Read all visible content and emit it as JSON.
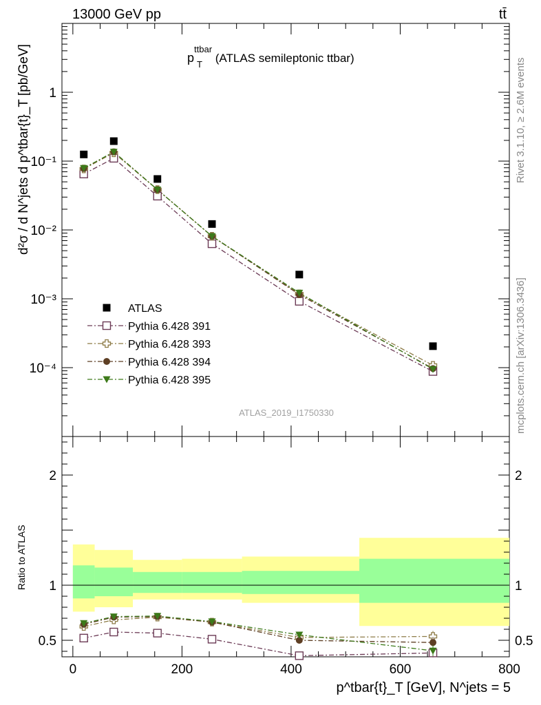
{
  "header": {
    "energy_label": "13000 GeV pp",
    "process_label": "tt̄",
    "plot_title": "p",
    "plot_title_sup": "ttbar",
    "plot_title_sub": "T",
    "plot_title_rest": " (ATLAS semileptonic ttbar)",
    "side_label_rivet": "Rivet 3.1.10, ≥ 2.6M events",
    "side_label_mcplots": "mcplots.cern.ch [arXiv:1306.3436]",
    "analysis_id": "ATLAS_2019_I1750330"
  },
  "axes": {
    "main_ylabel": "d²σ / d N^jets d p^tbar{t}_T [pb/GeV]",
    "ratio_ylabel": "Ratio to ATLAS",
    "xlabel": "p^tbar{t}_T [GeV], N^jets = 5"
  },
  "colors": {
    "atlas": "#000000",
    "p391": "#6b3a55",
    "p393": "#8c7a45",
    "p394": "#5e3f24",
    "p395": "#3d7a1a",
    "band_inner": "#99ff99",
    "band_outer": "#ffff99"
  },
  "chart_data": [
    {
      "type": "scatter",
      "panel": "main",
      "y_scale": "log",
      "xlim": [
        -20,
        800
      ],
      "ylim": [
        1e-05,
        10
      ],
      "x_ticks": [
        0,
        200,
        400,
        600,
        800
      ],
      "y_tick_labels": [
        "1",
        "10⁻¹",
        "10⁻²",
        "10⁻³",
        "10⁻⁴"
      ],
      "y_tick_values": [
        1,
        0.1,
        0.01,
        0.001,
        0.0001
      ],
      "legend_placement": "lower-left",
      "series": [
        {
          "name": "ATLAS",
          "marker": "square-filled",
          "line": "none",
          "x": [
            20,
            75,
            155,
            255,
            415,
            660
          ],
          "y": [
            0.125,
            0.195,
            0.055,
            0.0122,
            0.00225,
            0.000205
          ]
        },
        {
          "name": "Pythia 6.428 391",
          "marker": "square-open",
          "line": "dash-dot",
          "x": [
            20,
            75,
            155,
            255,
            415,
            660
          ],
          "y": [
            0.065,
            0.11,
            0.031,
            0.0063,
            0.00092,
            8.8e-05
          ]
        },
        {
          "name": "Pythia 6.428 393",
          "marker": "cross-open",
          "line": "dash-dot",
          "x": [
            20,
            75,
            155,
            255,
            415,
            660
          ],
          "y": [
            0.077,
            0.132,
            0.0385,
            0.0081,
            0.00118,
            0.000108
          ]
        },
        {
          "name": "Pythia 6.428 394",
          "marker": "circle-filled",
          "line": "dash-dot",
          "x": [
            20,
            75,
            155,
            255,
            415,
            660
          ],
          "y": [
            0.078,
            0.136,
            0.0385,
            0.0081,
            0.00115,
            9.7e-05
          ]
        },
        {
          "name": "Pythia 6.428 395",
          "marker": "triangle-down-filled",
          "line": "dash-dot",
          "x": [
            20,
            75,
            155,
            255,
            415,
            660
          ],
          "y": [
            0.079,
            0.136,
            0.0385,
            0.0081,
            0.00122,
            9.5e-05
          ]
        }
      ]
    },
    {
      "type": "scatter",
      "panel": "ratio",
      "xlim": [
        -20,
        800
      ],
      "ylim": [
        0.35,
        2.35
      ],
      "x_ticks": [
        0,
        200,
        400,
        600,
        800
      ],
      "y_ticks": [
        0.5,
        1,
        2
      ],
      "reference_line": 1,
      "bands": [
        {
          "x_lo": 0,
          "x_hi": 40,
          "inner": [
            0.88,
            1.18
          ],
          "outer": [
            0.76,
            1.37
          ]
        },
        {
          "x_lo": 40,
          "x_hi": 110,
          "inner": [
            0.9,
            1.16
          ],
          "outer": [
            0.8,
            1.32
          ]
        },
        {
          "x_lo": 110,
          "x_hi": 200,
          "inner": [
            0.93,
            1.12
          ],
          "outer": [
            0.87,
            1.23
          ]
        },
        {
          "x_lo": 200,
          "x_hi": 310,
          "inner": [
            0.93,
            1.12
          ],
          "outer": [
            0.87,
            1.24
          ]
        },
        {
          "x_lo": 310,
          "x_hi": 525,
          "inner": [
            0.92,
            1.13
          ],
          "outer": [
            0.84,
            1.26
          ]
        },
        {
          "x_lo": 525,
          "x_hi": 800,
          "inner": [
            0.84,
            1.24
          ],
          "outer": [
            0.63,
            1.43
          ]
        }
      ],
      "series": [
        {
          "name": "Pythia 6.428 391",
          "marker": "square-open",
          "x": [
            20,
            75,
            155,
            255,
            415,
            660
          ],
          "y": [
            0.52,
            0.575,
            0.565,
            0.51,
            0.36,
            0.385
          ],
          "err": [
            0,
            0,
            0,
            0,
            0,
            0.04
          ]
        },
        {
          "name": "Pythia 6.428 393",
          "marker": "cross-open",
          "x": [
            20,
            75,
            155,
            255,
            415,
            660
          ],
          "y": [
            0.625,
            0.685,
            0.71,
            0.665,
            0.525,
            0.535
          ],
          "err": [
            0,
            0,
            0,
            0,
            0.015,
            0.05
          ]
        },
        {
          "name": "Pythia 6.428 394",
          "marker": "circle-filled",
          "x": [
            20,
            75,
            155,
            255,
            415,
            660
          ],
          "y": [
            0.645,
            0.71,
            0.715,
            0.665,
            0.5,
            0.48
          ],
          "err": [
            0,
            0,
            0,
            0,
            0.02,
            0.05
          ]
        },
        {
          "name": "Pythia 6.428 395",
          "marker": "triangle-down-filled",
          "x": [
            20,
            75,
            155,
            255,
            415,
            660
          ],
          "y": [
            0.655,
            0.715,
            0.72,
            0.67,
            0.55,
            0.405
          ],
          "err": [
            0,
            0,
            0,
            0,
            0.02,
            0.05
          ]
        }
      ]
    }
  ]
}
